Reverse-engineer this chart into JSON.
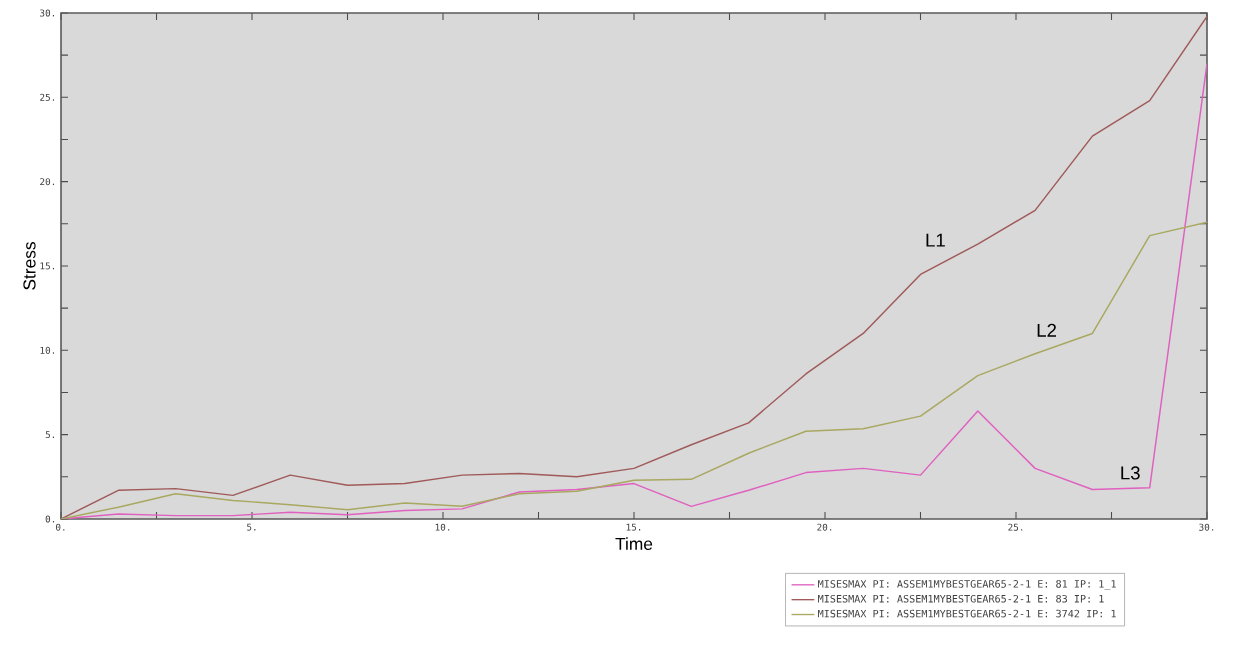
{
  "chart_data": {
    "type": "line",
    "xlabel": "Time",
    "ylabel": "Stress",
    "x": [
      0,
      1.5,
      3,
      4.5,
      6,
      7.5,
      9,
      10.5,
      12,
      13.5,
      15,
      16.5,
      18,
      19.5,
      21,
      22.5,
      24,
      25.5,
      27,
      28.5,
      30
    ],
    "series": [
      {
        "name": "MISESMAX PI: ASSEM1MYBESTGEAR65-2-1 E: 81 IP: 1_1",
        "color": "#e060c0",
        "values": [
          0,
          0.3,
          0.2,
          0.2,
          0.4,
          0.25,
          0.5,
          0.6,
          1.6,
          1.75,
          2.1,
          0.75,
          1.7,
          2.75,
          3.0,
          2.6,
          6.4,
          3.0,
          1.75,
          1.85,
          27.0
        ]
      },
      {
        "name": "MISESMAX PI: ASSEM1MYBESTGEAR65-2-1 E: 83 IP: 1",
        "color": "#a05a5a",
        "values": [
          0,
          1.7,
          1.8,
          1.4,
          2.6,
          2.0,
          2.1,
          2.6,
          2.7,
          2.5,
          3.0,
          4.4,
          5.7,
          8.6,
          11.0,
          14.5,
          16.3,
          18.3,
          22.7,
          24.8,
          29.8
        ]
      },
      {
        "name": "MISESMAX PI: ASSEM1MYBESTGEAR65-2-1 E: 3742 IP: 1",
        "color": "#a8a860",
        "values": [
          0,
          0.7,
          1.5,
          1.1,
          0.85,
          0.55,
          0.95,
          0.75,
          1.5,
          1.65,
          2.3,
          2.35,
          3.9,
          5.2,
          5.35,
          6.1,
          8.5,
          9.8,
          11.0,
          16.8,
          17.6
        ]
      }
    ],
    "xlim": [
      0,
      30
    ],
    "ylim": [
      0,
      30
    ],
    "xticks": [
      {
        "value": 0,
        "label": "0."
      },
      {
        "value": 2.5,
        "label": null
      },
      {
        "value": 5,
        "label": "5."
      },
      {
        "value": 7.5,
        "label": null
      },
      {
        "value": 10,
        "label": "10."
      },
      {
        "value": 12.5,
        "label": null
      },
      {
        "value": 15,
        "label": "15."
      },
      {
        "value": 17.5,
        "label": null
      },
      {
        "value": 20,
        "label": "20."
      },
      {
        "value": 22.5,
        "label": null
      },
      {
        "value": 25,
        "label": "25."
      },
      {
        "value": 27.5,
        "label": null
      },
      {
        "value": 30,
        "label": "30."
      }
    ],
    "yticks": [
      {
        "value": 0,
        "label": "0."
      },
      {
        "value": 2.5,
        "label": null
      },
      {
        "value": 5,
        "label": "5."
      },
      {
        "value": 7.5,
        "label": null
      },
      {
        "value": 10,
        "label": "10."
      },
      {
        "value": 12.5,
        "label": null
      },
      {
        "value": 15,
        "label": "15."
      },
      {
        "value": 17.5,
        "label": null
      },
      {
        "value": 20,
        "label": "20."
      },
      {
        "value": 22.5,
        "label": null
      },
      {
        "value": 25,
        "label": "25."
      },
      {
        "value": 27.5,
        "label": null
      },
      {
        "value": 30,
        "label": "30."
      }
    ],
    "annotations": [
      "L1",
      "L2",
      "L3"
    ],
    "legend": "bottom right"
  }
}
